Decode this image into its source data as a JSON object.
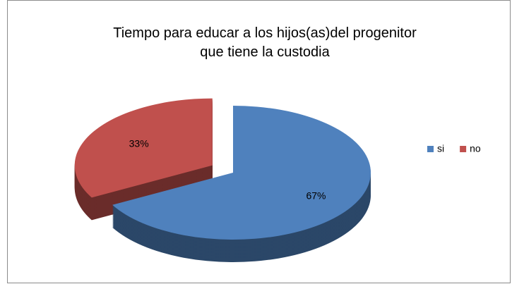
{
  "chart_data": {
    "type": "pie3d",
    "title": "Tiempo para educar a los hijos(as)del progenitor\nque tiene la custodia",
    "categories": [
      "si",
      "no"
    ],
    "values": [
      67,
      33
    ],
    "value_labels": [
      "67%",
      "33%"
    ],
    "colors": [
      "#4f81bd",
      "#c0504d"
    ],
    "exploded": [
      false,
      true
    ],
    "legend": "right"
  }
}
